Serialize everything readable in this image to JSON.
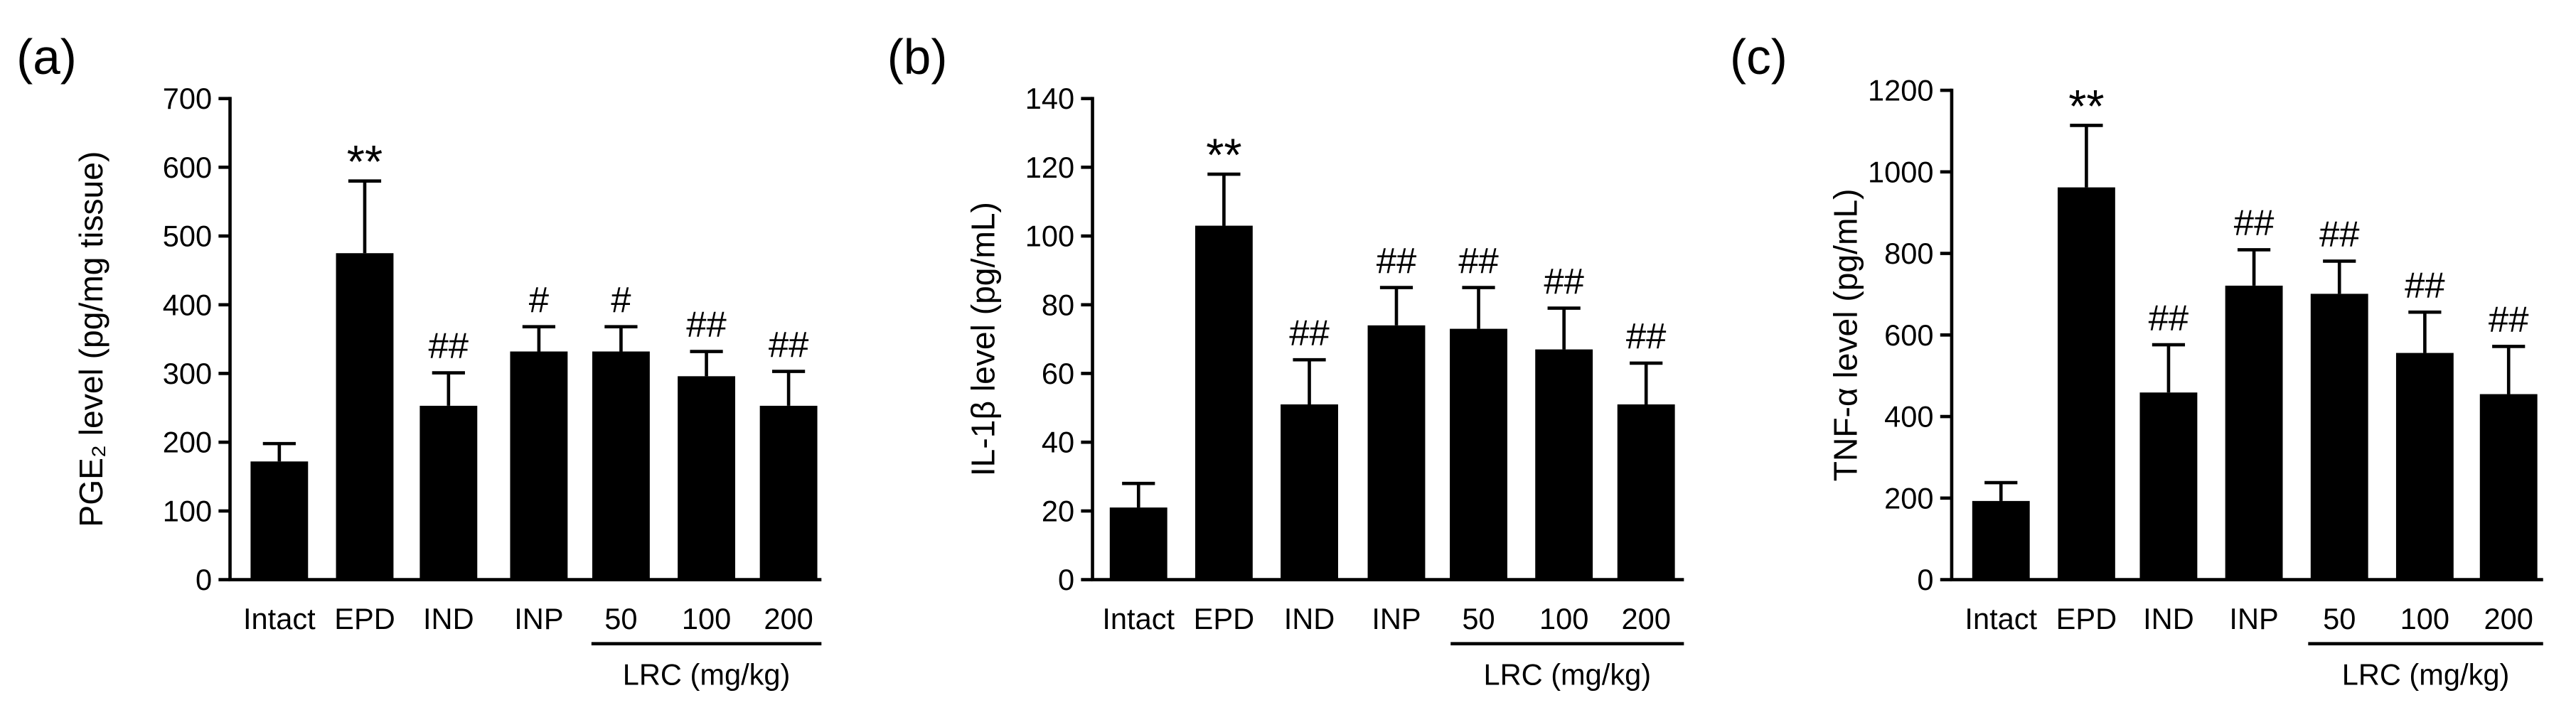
{
  "colors": {
    "bar": "#000000",
    "axis": "#000000",
    "text": "#000000",
    "background": "#ffffff"
  },
  "chart_data": [
    {
      "panel_label": "(a)",
      "type": "bar",
      "categories": [
        "Intact",
        "EPD",
        "IND",
        "INP",
        "50",
        "100",
        "200"
      ],
      "values": [
        172,
        475,
        253,
        332,
        332,
        296,
        253
      ],
      "errors": [
        26,
        105,
        48,
        36,
        36,
        36,
        50
      ],
      "annotations": [
        "",
        "**",
        "##",
        "#",
        "#",
        "##",
        "##"
      ],
      "xlabel": "",
      "ylabel": "PGE₂ level (pg/mg tissue)",
      "ylim": [
        0,
        700
      ],
      "yticks": [
        0,
        100,
        200,
        300,
        400,
        500,
        600,
        700
      ],
      "group": {
        "label": "LRC (mg/kg)",
        "categories": [
          "50",
          "100",
          "200"
        ]
      }
    },
    {
      "panel_label": "(b)",
      "type": "bar",
      "categories": [
        "Intact",
        "EPD",
        "IND",
        "INP",
        "50",
        "100",
        "200"
      ],
      "values": [
        21,
        103,
        51,
        74,
        73,
        67,
        51
      ],
      "errors": [
        7,
        15,
        13,
        11,
        12,
        12,
        12
      ],
      "annotations": [
        "",
        "**",
        "##",
        "##",
        "##",
        "##",
        "##"
      ],
      "xlabel": "",
      "ylabel": "IL-1β level (pg/mL)",
      "ylim": [
        0,
        140
      ],
      "yticks": [
        0,
        20,
        40,
        60,
        80,
        100,
        120,
        140
      ],
      "group": {
        "label": "LRC (mg/kg)",
        "categories": [
          "50",
          "100",
          "200"
        ]
      }
    },
    {
      "panel_label": "(c)",
      "type": "bar",
      "categories": [
        "Intact",
        "EPD",
        "IND",
        "INP",
        "50",
        "100",
        "200"
      ],
      "values": [
        193,
        962,
        459,
        721,
        701,
        556,
        455
      ],
      "errors": [
        45,
        152,
        117,
        88,
        80,
        100,
        117
      ],
      "annotations": [
        "",
        "**",
        "##",
        "##",
        "##",
        "##",
        "##"
      ],
      "xlabel": "",
      "ylabel": "TNF-α level (pg/mL)",
      "ylim": [
        0,
        1200
      ],
      "yticks": [
        0,
        200,
        400,
        600,
        800,
        1000,
        1200
      ],
      "group": {
        "label": "LRC (mg/kg)",
        "categories": [
          "50",
          "100",
          "200"
        ]
      }
    }
  ]
}
